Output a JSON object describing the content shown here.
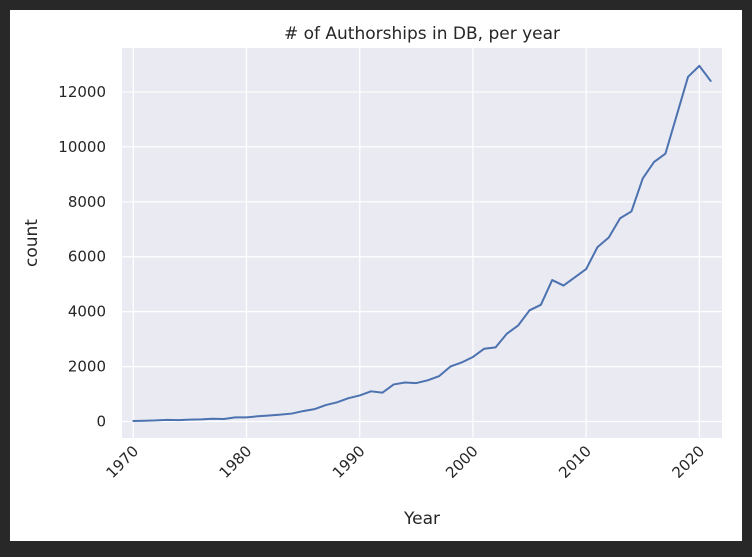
{
  "chart_data": {
    "type": "line",
    "title": "# of Authorships in DB, per year",
    "xlabel": "Year",
    "ylabel": "count",
    "xlim": [
      1969,
      2022
    ],
    "ylim": [
      -600,
      13600
    ],
    "xticks": [
      1970,
      1980,
      1990,
      2000,
      2010,
      2020
    ],
    "yticks": [
      0,
      2000,
      4000,
      6000,
      8000,
      10000,
      12000
    ],
    "grid": true,
    "colors": {
      "line": "#4c72b0",
      "plot_bg": "#eaeaf2",
      "grid": "#ffffff"
    },
    "series": [
      {
        "x": [
          1970,
          1971,
          1972,
          1973,
          1974,
          1975,
          1976,
          1977,
          1978,
          1979,
          1980,
          1981,
          1982,
          1983,
          1984,
          1985,
          1986,
          1987,
          1988,
          1989,
          1990,
          1991,
          1992,
          1993,
          1994,
          1995,
          1996,
          1997,
          1998,
          1999,
          2000,
          2001,
          2002,
          2003,
          2004,
          2005,
          2006,
          2007,
          2008,
          2009,
          2010,
          2011,
          2012,
          2013,
          2014,
          2015,
          2016,
          2017,
          2018,
          2019,
          2020,
          2021
        ],
        "y": [
          20,
          30,
          40,
          60,
          50,
          70,
          80,
          100,
          90,
          150,
          150,
          190,
          220,
          250,
          290,
          380,
          450,
          600,
          700,
          850,
          950,
          1100,
          1050,
          1350,
          1420,
          1400,
          1500,
          1650,
          2000,
          2150,
          2350,
          2650,
          2700,
          3200,
          3500,
          4050,
          4250,
          5150,
          4950,
          5250,
          5550,
          6350,
          6700,
          7400,
          7650,
          8850,
          9450,
          9750,
          11150,
          12550,
          12950,
          12400
        ]
      }
    ]
  }
}
